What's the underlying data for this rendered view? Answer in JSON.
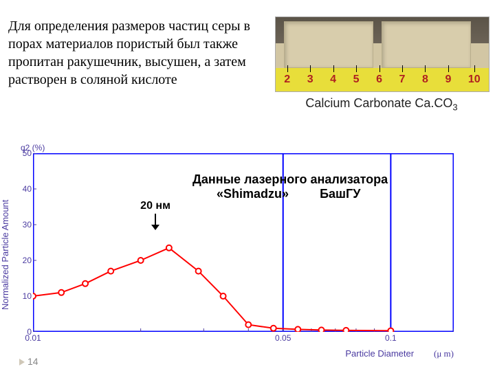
{
  "paragraph": "Для определения размеров частиц серы в порах материалов пористый был также пропитан ракушечник, высушен, а затем растворен в соляной кислоте",
  "photo": {
    "caption": "Calcium Carbonate Ca.CO",
    "caption_sub": "3",
    "ruler_values": [
      "2",
      "3",
      "4",
      "5",
      "6",
      "7",
      "8",
      "9",
      "10"
    ]
  },
  "chart": {
    "type": "line",
    "ylabel_outer": "Normalized Particle Amount",
    "ylabel_inner": "q2 (%)",
    "xlabel": "Particle Diameter",
    "xlabel_unit": "(μ m)",
    "xmin": 0.01,
    "xmax": 0.15,
    "scale_x": "log",
    "ylim": [
      0,
      50
    ],
    "ytick_step": 10,
    "xticks": [
      0.01,
      0.05,
      0.1
    ],
    "xtick_labels": [
      "0.01",
      "0.05",
      "0.1"
    ],
    "x_vlines": [
      0.05,
      0.1
    ],
    "series_x": [
      0.01,
      0.012,
      0.014,
      0.0165,
      0.02,
      0.024,
      0.029,
      0.034,
      0.04,
      0.047,
      0.055,
      0.064,
      0.075,
      0.1
    ],
    "series_y": [
      10,
      11,
      13.5,
      17,
      20,
      23.5,
      17,
      10,
      2,
      1,
      0.7,
      0.5,
      0.4,
      0.3
    ],
    "line_color": "#ff0000",
    "line_width": 2,
    "marker_color": "#ff0000",
    "marker_fill": "#ffffff",
    "marker_radius": 4,
    "frame_color": "#0000ff",
    "frame_width": 3,
    "grid_color": "#0000ff",
    "tick_color": "#4a3aa0",
    "background_color": "#ffffff",
    "annotations": {
      "peak_label": "20 нм",
      "main_line1": "Данные  лазерного анализатора",
      "main_line2_a": "«Shimadzu»",
      "main_line2_b": "БашГУ"
    }
  },
  "page_number": "14"
}
